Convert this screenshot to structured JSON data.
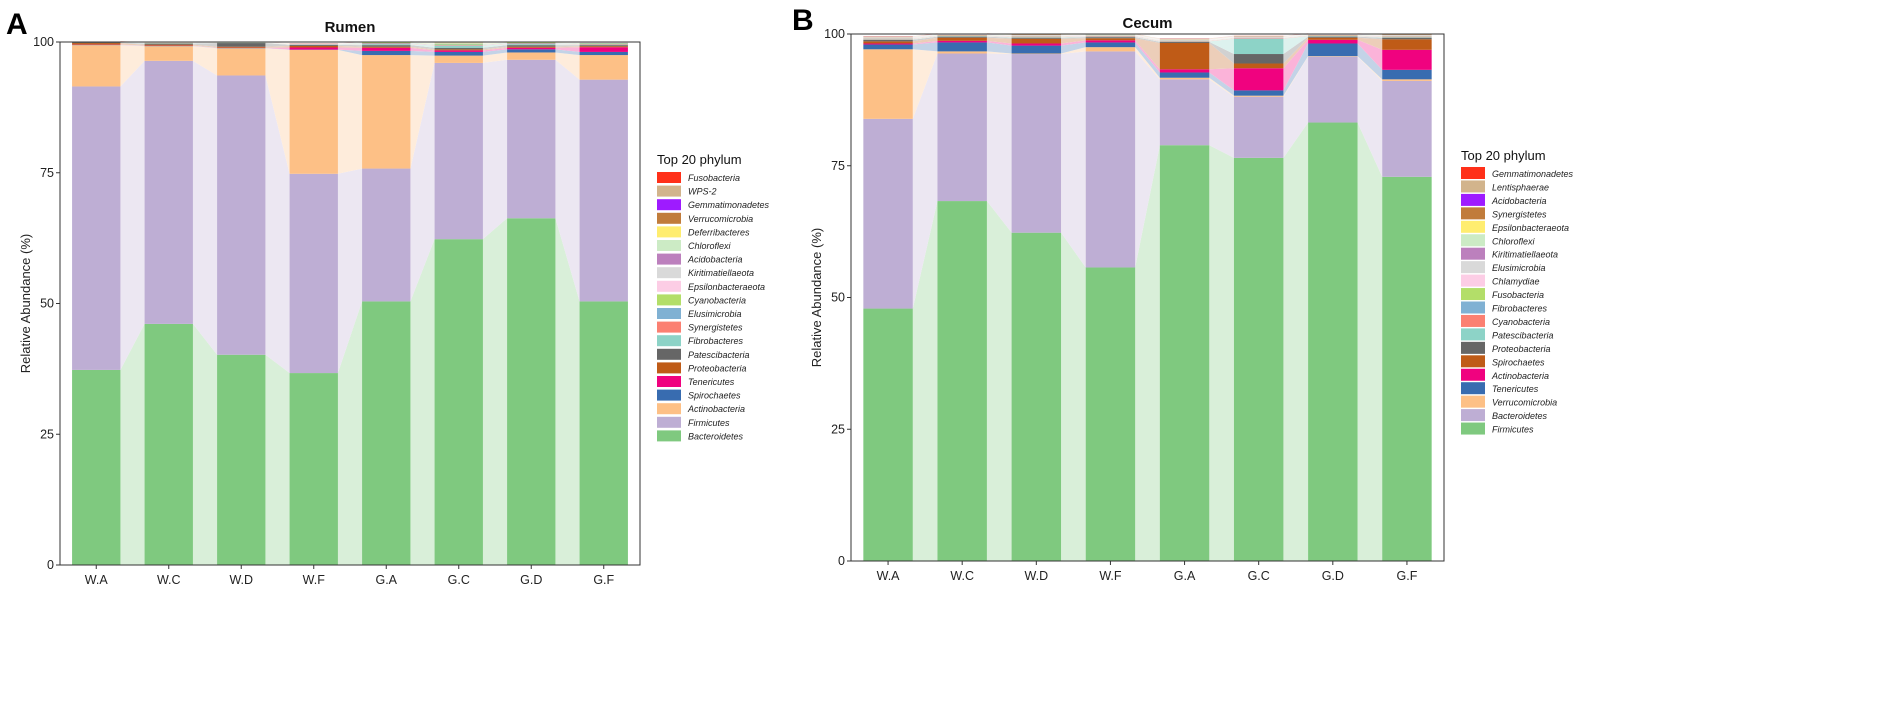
{
  "chart_data": [
    {
      "type": "stacked-bar",
      "panel_label": "A",
      "title": "Rumen",
      "ylabel": "Relative Abundance (%)",
      "xlabel": "",
      "ylim": [
        0,
        100
      ],
      "yticks": [
        "0",
        "25",
        "50",
        "75",
        "100"
      ],
      "categories": [
        "W.A",
        "W.C",
        "W.D",
        "W.F",
        "G.A",
        "G.C",
        "G.D",
        "G.F"
      ],
      "legend_title": "Top 20 phylum",
      "series": [
        {
          "name": "Bacteroidetes",
          "color": "#7FC97F",
          "values": [
            37.3,
            46.1,
            40.2,
            36.7,
            50.4,
            62.3,
            66.3,
            50.4
          ]
        },
        {
          "name": "Firmicutes",
          "color": "#BEAED4",
          "values": [
            54.2,
            50.3,
            53.4,
            38.1,
            25.4,
            33.7,
            30.3,
            42.4
          ]
        },
        {
          "name": "Actinobacteria",
          "color": "#FDC086",
          "values": [
            7.9,
            2.8,
            5.2,
            23.7,
            21.7,
            1.4,
            1.4,
            4.7
          ]
        },
        {
          "name": "Spirochaetes",
          "color": "#386CB0",
          "values": [
            0.05,
            0.05,
            0.05,
            0.05,
            0.8,
            0.7,
            0.6,
            0.6
          ]
        },
        {
          "name": "Tenericutes",
          "color": "#F0027F",
          "values": [
            0.05,
            0.05,
            0.05,
            0.4,
            0.6,
            0.3,
            0.3,
            0.9
          ]
        },
        {
          "name": "Proteobacteria",
          "color": "#BF5B17",
          "values": [
            0.3,
            0.2,
            0.2,
            0.3,
            0.2,
            0.2,
            0.2,
            0.2
          ]
        },
        {
          "name": "Patescibacteria",
          "color": "#666666",
          "values": [
            0.1,
            0.2,
            0.7,
            0.2,
            0.3,
            0.3,
            0.3,
            0.2
          ]
        },
        {
          "name": "Fibrobacteres",
          "color": "#8DD3C7",
          "values": [
            0.05,
            0.05,
            0.05,
            0.05,
            0.2,
            0.4,
            0.2,
            0.1
          ]
        },
        {
          "name": "Synergistetes",
          "color": "#FB8072",
          "values": [
            0.02,
            0.02,
            0.02,
            0.02,
            0.1,
            0.1,
            0.1,
            0.1
          ]
        },
        {
          "name": "Elusimicrobia",
          "color": "#80B1D3",
          "values": [
            0.02,
            0.02,
            0.02,
            0.02,
            0.1,
            0.1,
            0.1,
            0.1
          ]
        },
        {
          "name": "Cyanobacteria",
          "color": "#B3DE69",
          "values": [
            0.02,
            0.02,
            0.02,
            0.02,
            0.1,
            0.2,
            0.1,
            0.1
          ]
        },
        {
          "name": "Epsilonbacteraeota",
          "color": "#FCCDE5",
          "values": [
            0.02,
            0.02,
            0.02,
            0.02,
            0.05,
            0.05,
            0.05,
            0.05
          ]
        },
        {
          "name": "Kiritimatiellaeota",
          "color": "#D9D9D9",
          "values": [
            0.02,
            0.02,
            0.02,
            0.02,
            0.05,
            0.05,
            0.05,
            0.05
          ]
        },
        {
          "name": "Acidobacteria",
          "color": "#BC80BD",
          "values": [
            0.02,
            0.02,
            0.02,
            0.02,
            0.02,
            0.02,
            0.02,
            0.02
          ]
        },
        {
          "name": "Chloroflexi",
          "color": "#CCEBC5",
          "values": [
            0.02,
            0.02,
            0.02,
            0.02,
            0.02,
            0.05,
            0.02,
            0.02
          ]
        },
        {
          "name": "Deferribacteres",
          "color": "#FFED6F",
          "values": [
            0.02,
            0.02,
            0.02,
            0.02,
            0.02,
            0.02,
            0.02,
            0.02
          ]
        },
        {
          "name": "Verrucomicrobia",
          "color": "#C17C3B",
          "values": [
            0.02,
            0.02,
            0.02,
            0.02,
            0.02,
            0.02,
            0.02,
            0.02
          ]
        },
        {
          "name": "Gemmatimonadetes",
          "color": "#9E1BFF",
          "values": [
            0.02,
            0.02,
            0.02,
            0.02,
            0.02,
            0.02,
            0.02,
            0.02
          ]
        },
        {
          "name": "WPS-2",
          "color": "#D2B48C",
          "values": [
            0.02,
            0.02,
            0.02,
            0.02,
            0.02,
            0.02,
            0.02,
            0.02
          ]
        },
        {
          "name": "Fusobacteria",
          "color": "#FF3019",
          "values": [
            0.02,
            0.02,
            0.02,
            0.02,
            0.02,
            0.02,
            0.02,
            0.02
          ]
        }
      ]
    },
    {
      "type": "stacked-bar",
      "panel_label": "B",
      "title": "Cecum",
      "ylabel": "Relative Abundance (%)",
      "xlabel": "",
      "ylim": [
        0,
        100
      ],
      "yticks": [
        "0",
        "25",
        "50",
        "75",
        "100"
      ],
      "categories": [
        "W.A",
        "W.C",
        "W.D",
        "W.F",
        "G.A",
        "G.C",
        "G.D",
        "G.F"
      ],
      "legend_title": "Top 20 phylum",
      "series": [
        {
          "name": "Firmicutes",
          "color": "#7FC97F",
          "values": [
            47.9,
            68.3,
            62.3,
            55.7,
            78.9,
            76.5,
            83.2,
            72.9
          ]
        },
        {
          "name": "Bacteroidetes",
          "color": "#BEAED4",
          "values": [
            36.0,
            28.0,
            33.9,
            41.0,
            12.5,
            11.6,
            12.5,
            18.2
          ]
        },
        {
          "name": "Verrucomicrobia",
          "color": "#FDC086",
          "values": [
            13.2,
            0.4,
            0.1,
            0.8,
            0.3,
            0.2,
            0.1,
            0.3
          ]
        },
        {
          "name": "Tenericutes",
          "color": "#386CB0",
          "values": [
            0.9,
            1.7,
            1.5,
            0.9,
            1.0,
            1.0,
            2.4,
            1.8
          ]
        },
        {
          "name": "Actinobacteria",
          "color": "#F0027F",
          "values": [
            0.2,
            0.3,
            0.4,
            0.4,
            0.6,
            4.2,
            0.7,
            3.8
          ]
        },
        {
          "name": "Spirochaetes",
          "color": "#BF5B17",
          "values": [
            0.4,
            0.6,
            0.9,
            0.4,
            5.0,
            0.9,
            0.4,
            2.0
          ]
        },
        {
          "name": "Proteobacteria",
          "color": "#666666",
          "values": [
            0.3,
            0.2,
            0.2,
            0.2,
            0.2,
            1.8,
            0.2,
            0.3
          ]
        },
        {
          "name": "Patescibacteria",
          "color": "#8DD3C7",
          "values": [
            0.1,
            0.1,
            0.1,
            0.1,
            0.1,
            2.9,
            0.1,
            0.1
          ]
        },
        {
          "name": "Cyanobacteria",
          "color": "#FB8072",
          "values": [
            0.1,
            0.1,
            0.1,
            0.1,
            0.1,
            0.1,
            0.1,
            0.1
          ]
        },
        {
          "name": "Fibrobacteres",
          "color": "#80B1D3",
          "values": [
            0.05,
            0.05,
            0.05,
            0.05,
            0.05,
            0.05,
            0.05,
            0.05
          ]
        },
        {
          "name": "Fusobacteria",
          "color": "#B3DE69",
          "values": [
            0.05,
            0.05,
            0.05,
            0.05,
            0.05,
            0.05,
            0.05,
            0.05
          ]
        },
        {
          "name": "Chlamydiae",
          "color": "#FCCDE5",
          "values": [
            0.05,
            0.05,
            0.05,
            0.05,
            0.05,
            0.05,
            0.05,
            0.05
          ]
        },
        {
          "name": "Elusimicrobia",
          "color": "#D9D9D9",
          "values": [
            0.05,
            0.05,
            0.05,
            0.05,
            0.05,
            0.05,
            0.05,
            0.05
          ]
        },
        {
          "name": "Kiritimatiellaeota",
          "color": "#BC80BD",
          "values": [
            0.05,
            0.05,
            0.05,
            0.05,
            0.05,
            0.05,
            0.05,
            0.05
          ]
        },
        {
          "name": "Chloroflexi",
          "color": "#CCEBC5",
          "values": [
            0.05,
            0.05,
            0.05,
            0.05,
            0.05,
            0.05,
            0.05,
            0.05
          ]
        },
        {
          "name": "Epsilonbacteraeota",
          "color": "#FFED6F",
          "values": [
            0.05,
            0.05,
            0.05,
            0.05,
            0.05,
            0.05,
            0.05,
            0.05
          ]
        },
        {
          "name": "Synergistetes",
          "color": "#C17C3B",
          "values": [
            0.05,
            0.05,
            0.05,
            0.05,
            0.05,
            0.05,
            0.05,
            0.05
          ]
        },
        {
          "name": "Acidobacteria",
          "color": "#9E1BFF",
          "values": [
            0.02,
            0.02,
            0.02,
            0.02,
            0.02,
            0.02,
            0.02,
            0.02
          ]
        },
        {
          "name": "Lentisphaerae",
          "color": "#D2B48C",
          "values": [
            0.02,
            0.02,
            0.02,
            0.02,
            0.02,
            0.02,
            0.02,
            0.02
          ]
        },
        {
          "name": "Gemmatimonadetes",
          "color": "#FF3019",
          "values": [
            0.02,
            0.02,
            0.02,
            0.02,
            0.02,
            0.02,
            0.02,
            0.02
          ]
        }
      ]
    }
  ]
}
